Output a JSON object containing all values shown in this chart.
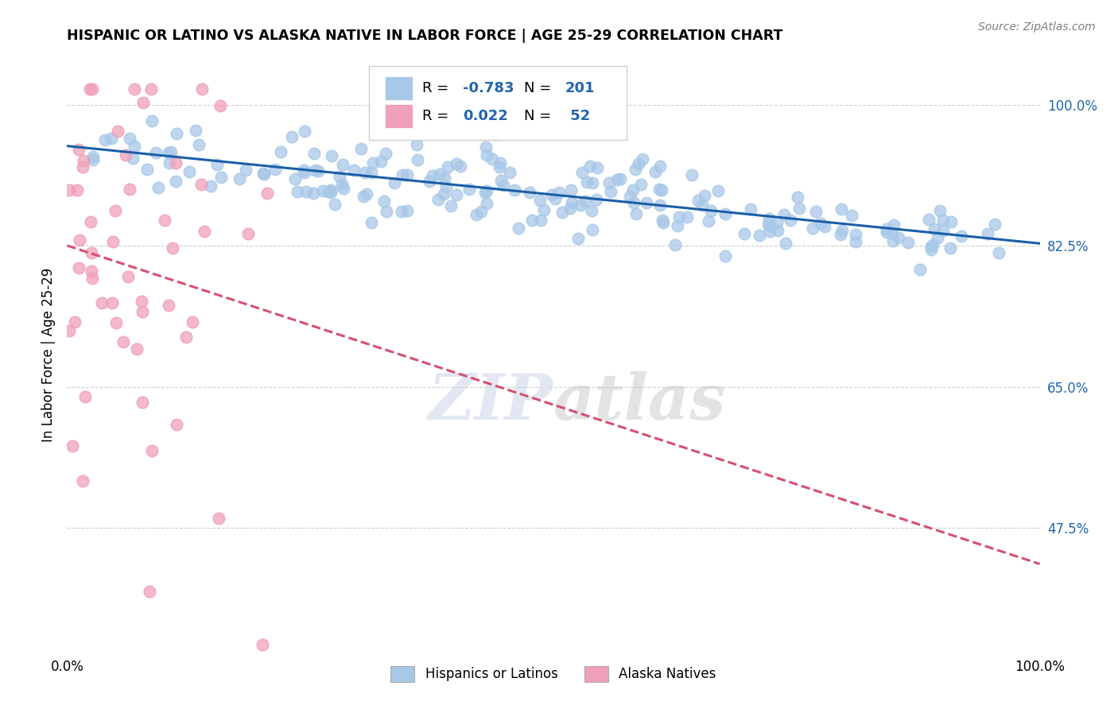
{
  "title": "HISPANIC OR LATINO VS ALASKA NATIVE IN LABOR FORCE | AGE 25-29 CORRELATION CHART",
  "source": "Source: ZipAtlas.com",
  "ylabel": "In Labor Force | Age 25-29",
  "xlim": [
    0.0,
    1.0
  ],
  "ylim": [
    0.32,
    1.06
  ],
  "yticks": [
    0.475,
    0.65,
    0.825,
    1.0
  ],
  "ytick_labels": [
    "47.5%",
    "65.0%",
    "82.5%",
    "100.0%"
  ],
  "xticks": [
    0.0,
    1.0
  ],
  "xtick_labels": [
    "0.0%",
    "100.0%"
  ],
  "blue_R": -0.783,
  "blue_N": 201,
  "pink_R": 0.022,
  "pink_N": 52,
  "blue_color": "#a8c8e8",
  "pink_color": "#f0a0b8",
  "blue_line_color": "#1a5fa8",
  "pink_line_color": "#d45070",
  "blue_label": "Hispanics or Latinos",
  "pink_label": "Alaska Natives",
  "background_color": "#ffffff",
  "grid_color": "#bbbbbb",
  "label_color": "#2166ac"
}
